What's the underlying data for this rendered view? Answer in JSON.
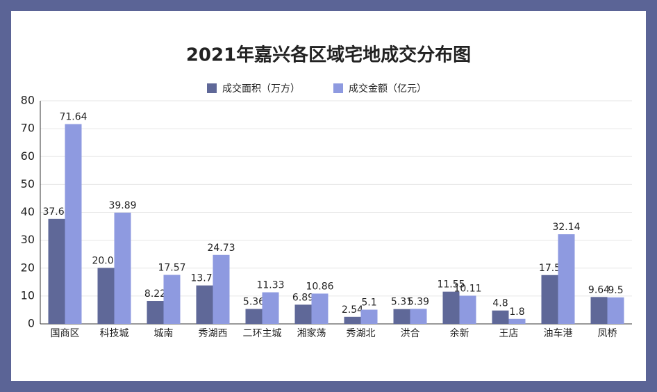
{
  "chart_data": {
    "type": "bar",
    "title": "2021年嘉兴各区域宅地成交分布图",
    "categories": [
      "国商区",
      "科技城",
      "城南",
      "秀湖西",
      "二环主城",
      "湘家荡",
      "秀湖北",
      "洪合",
      "余新",
      "王店",
      "油车港",
      "凤桥"
    ],
    "series": [
      {
        "name": "成交面积（万方）",
        "color": "#5f6898",
        "values": [
          37.67,
          20.08,
          8.22,
          13.79,
          5.36,
          6.89,
          2.54,
          5.31,
          11.55,
          4.8,
          17.5,
          9.64
        ]
      },
      {
        "name": "成交金额（亿元）",
        "color": "#8e9ae0",
        "values": [
          71.64,
          39.89,
          17.57,
          24.73,
          11.33,
          10.86,
          5.1,
          5.39,
          10.11,
          1.8,
          32.14,
          9.5
        ]
      }
    ],
    "ylim": [
      0,
      80
    ],
    "yticks": [
      0,
      10,
      20,
      30,
      40,
      50,
      60,
      70,
      80
    ],
    "grid": true,
    "legend": "top"
  }
}
